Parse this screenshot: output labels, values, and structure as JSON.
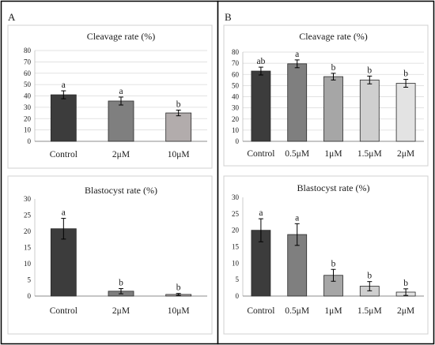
{
  "panels": [
    {
      "letter": "A"
    },
    {
      "letter": "B"
    }
  ],
  "chart_data": [
    {
      "id": "A-cleavage",
      "panel": "A",
      "type": "bar",
      "title": "Cleavage rate (%)",
      "categories": [
        "Control",
        "2μM",
        "10μM"
      ],
      "values": [
        41,
        35.5,
        25
      ],
      "errors": [
        3.5,
        3.5,
        2.5
      ],
      "labels": [
        "a",
        "a",
        "b"
      ],
      "colors": [
        "#3c3c3c",
        "#7f7f7f",
        "#b2acac"
      ],
      "ylim": [
        0,
        80
      ],
      "yticks": [
        0,
        10,
        20,
        30,
        40,
        50,
        60,
        70,
        80
      ],
      "grid": true
    },
    {
      "id": "A-blastocyst",
      "panel": "A",
      "type": "bar",
      "title": "Blastocyst rate (%)",
      "categories": [
        "Control",
        "2μM",
        "10μM"
      ],
      "values": [
        20.8,
        1.5,
        0.5
      ],
      "errors": [
        3.2,
        0.8,
        0.3
      ],
      "labels": [
        "a",
        "b",
        "b"
      ],
      "colors": [
        "#3c3c3c",
        "#7f7f7f",
        "#b2acac"
      ],
      "ylim": [
        0,
        30
      ],
      "yticks": [
        0,
        5,
        10,
        15,
        20,
        25,
        30
      ],
      "grid": false
    },
    {
      "id": "B-cleavage",
      "panel": "B",
      "type": "bar",
      "title": "Cleavage rate (%)",
      "categories": [
        "Control",
        "0.5μM",
        "1μM",
        "1.5μM",
        "2μM"
      ],
      "values": [
        63,
        69.5,
        58,
        55,
        52
      ],
      "errors": [
        3.5,
        3.5,
        3,
        3.5,
        3.5
      ],
      "labels": [
        "ab",
        "a",
        "b",
        "b",
        "b"
      ],
      "colors": [
        "#3c3c3c",
        "#7f7f7f",
        "#a6a6a6",
        "#cfcfcf",
        "#e3e3e3"
      ],
      "ylim": [
        0,
        80
      ],
      "yticks": [
        0,
        10,
        20,
        30,
        40,
        50,
        60,
        70,
        80
      ],
      "grid": true
    },
    {
      "id": "B-blastocyst",
      "panel": "B",
      "type": "bar",
      "title": "Blastocyst rate (%)",
      "categories": [
        "Control",
        "0.5μM",
        "1μM",
        "1.5μM",
        "2μM"
      ],
      "values": [
        20,
        18.7,
        6.3,
        3,
        1.2
      ],
      "errors": [
        3.5,
        3.3,
        1.8,
        1.4,
        1
      ],
      "labels": [
        "a",
        "a",
        "b",
        "b",
        "b"
      ],
      "colors": [
        "#3c3c3c",
        "#7f7f7f",
        "#a6a6a6",
        "#cfcfcf",
        "#e3e3e3"
      ],
      "ylim": [
        0,
        30
      ],
      "yticks": [
        0,
        5,
        10,
        15,
        20,
        25,
        30
      ],
      "grid": false
    }
  ]
}
